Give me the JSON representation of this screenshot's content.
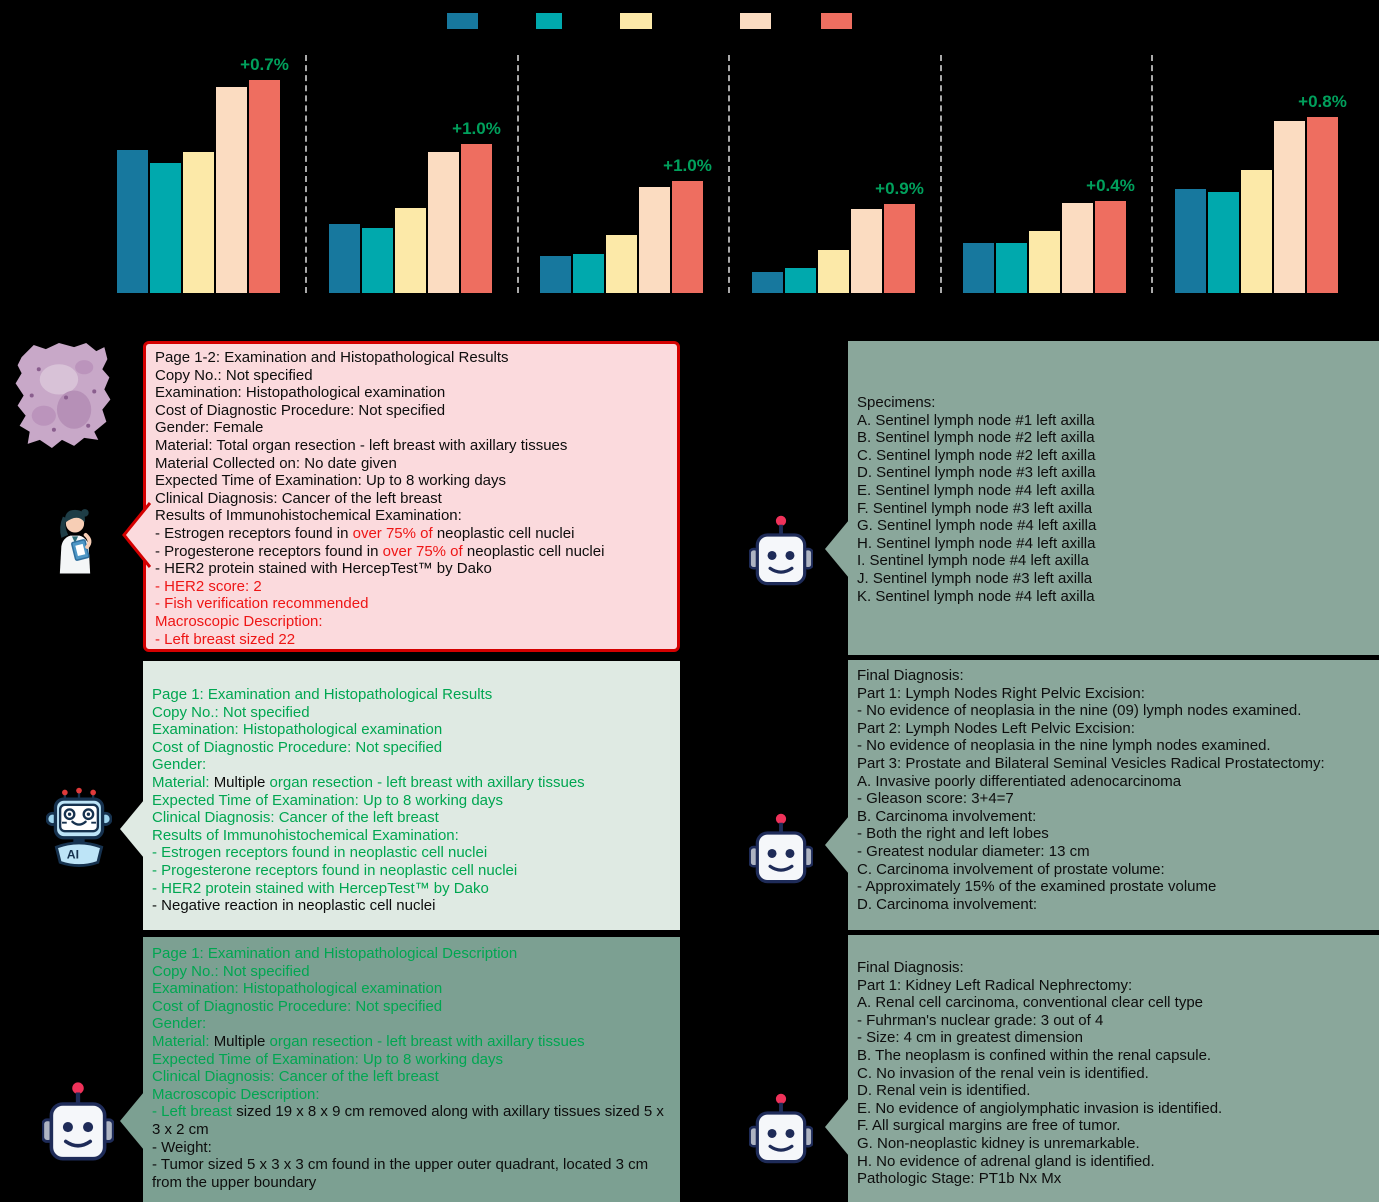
{
  "chart_data": {
    "type": "bar",
    "title": "",
    "xlabel": "",
    "ylabel": "",
    "value_units": "relative bar height in px (y-axis tick labels not visible in image)",
    "legend": {
      "labels": [
        "",
        "",
        "",
        "",
        ""
      ],
      "colors": [
        "#17789E",
        "#00A9AD",
        "#FCE9A8",
        "#FBDCC1",
        "#EE6E60"
      ]
    },
    "bar_colors": [
      "#17789E",
      "#00A9AD",
      "#FCE9A8",
      "#FBDCC1",
      "#EE6E60"
    ],
    "annotation_color": "#00A05C",
    "groups": [
      {
        "annotation": "+0.7%",
        "values": [
          143,
          130,
          141,
          206,
          213
        ]
      },
      {
        "annotation": "+1.0%",
        "values": [
          69,
          65,
          85,
          141,
          149
        ]
      },
      {
        "annotation": "+1.0%",
        "values": [
          37,
          39,
          58,
          106,
          112
        ]
      },
      {
        "annotation": "+0.9%",
        "values": [
          21,
          25,
          43,
          84,
          89
        ]
      },
      {
        "annotation": "+0.4%",
        "values": [
          50,
          50,
          62,
          90,
          92
        ]
      },
      {
        "annotation": "+0.8%",
        "values": [
          104,
          101,
          123,
          172,
          176
        ]
      }
    ],
    "grid": false,
    "legend_position": "top"
  },
  "colors": {
    "background": "#000000",
    "pink_panel_bg": "#FBDADD",
    "pink_panel_border": "#D40000",
    "mint_panel_bg": "#DFEAE3",
    "sage_panel_bg_right": "#8AA79B",
    "sage_panel_bg_left": "#7CA092",
    "text_black": "#0D0D0D",
    "text_red": "#EE1515",
    "text_green": "#00A651"
  },
  "icons": {
    "left_column": [
      "histology-slide-image",
      "doctor-icon",
      "ai-robot-icon",
      "robot-icon"
    ],
    "right_column": [
      "robot-icon",
      "robot-icon",
      "robot-icon"
    ]
  },
  "panels": {
    "left": [
      {
        "lines": [
          [
            {
              "t": "Page 1-2: Examination and Histopathological Results",
              "c": "k"
            }
          ],
          [
            {
              "t": "Copy No.: Not specified",
              "c": "k"
            }
          ],
          [
            {
              "t": "Examination: Histopathological examination",
              "c": "k"
            }
          ],
          [
            {
              "t": "Cost of Diagnostic Procedure: Not specified",
              "c": "k"
            }
          ],
          [
            {
              "t": "Gender: Female",
              "c": "k"
            }
          ],
          [
            {
              "t": "Material: Total organ resection - left breast with axillary tissues",
              "c": "k"
            }
          ],
          [
            {
              "t": "Material Collected on: No date given",
              "c": "k"
            }
          ],
          [
            {
              "t": "Expected Time of Examination: Up to 8 working days",
              "c": "k"
            }
          ],
          [
            {
              "t": "Clinical Diagnosis: Cancer of the left breast",
              "c": "k"
            }
          ],
          [
            {
              "t": "Results of Immunohistochemical Examination:",
              "c": "k"
            }
          ],
          [
            {
              "t": "- Estrogen receptors found in ",
              "c": "k"
            },
            {
              "t": "over 75% of",
              "c": "r"
            },
            {
              "t": " neoplastic cell nuclei",
              "c": "k"
            }
          ],
          [
            {
              "t": "- Progesterone receptors found in ",
              "c": "k"
            },
            {
              "t": "over 75% of",
              "c": "r"
            },
            {
              "t": " neoplastic cell nuclei",
              "c": "k"
            }
          ],
          [
            {
              "t": "- HER2 protein stained with HercepTest™ by Dako",
              "c": "k"
            }
          ],
          [
            {
              "t": "- HER2 score: 2",
              "c": "r"
            }
          ],
          [
            {
              "t": "- Fish verification recommended",
              "c": "r"
            }
          ],
          [
            {
              "t": "Macroscopic Description:",
              "c": "r"
            }
          ],
          [
            {
              "t": "- Left breast sized 22",
              "c": "r"
            }
          ]
        ]
      },
      {
        "lines": [
          [
            {
              "t": "Page 1: Examination and Histopathological Results",
              "c": "g"
            }
          ],
          [
            {
              "t": "Copy No.: Not specified",
              "c": "g"
            }
          ],
          [
            {
              "t": "Examination: Histopathological examination",
              "c": "g"
            }
          ],
          [
            {
              "t": "Cost of Diagnostic Procedure: Not specified",
              "c": "g"
            }
          ],
          [
            {
              "t": "Gender:",
              "c": "g"
            }
          ],
          [
            {
              "t": "Material: ",
              "c": "g"
            },
            {
              "t": "Multiple",
              "c": "k"
            },
            {
              "t": " organ resection - left breast with axillary tissues",
              "c": "g"
            }
          ],
          [
            {
              "t": "Expected Time of Examination: Up to 8 working days",
              "c": "g"
            }
          ],
          [
            {
              "t": "Clinical Diagnosis: Cancer of the left breast",
              "c": "g"
            }
          ],
          [
            {
              "t": "Results of Immunohistochemical Examination:",
              "c": "g"
            }
          ],
          [
            {
              "t": "- Estrogen receptors found in neoplastic cell nuclei",
              "c": "g"
            }
          ],
          [
            {
              "t": "- Progesterone receptors found in neoplastic cell nuclei",
              "c": "g"
            }
          ],
          [
            {
              "t": "- HER2 protein stained with HercepTest™ by Dako",
              "c": "g"
            }
          ],
          [
            {
              "t": "- Negative reaction in neoplastic cell nuclei",
              "c": "k"
            }
          ]
        ]
      },
      {
        "lines": [
          [
            {
              "t": "Page 1: Examination and Histopathological Description",
              "c": "g"
            }
          ],
          [
            {
              "t": "Copy No.: Not specified",
              "c": "g"
            }
          ],
          [
            {
              "t": "Examination: Histopathological examination",
              "c": "g"
            }
          ],
          [
            {
              "t": "Cost of Diagnostic Procedure: Not specified",
              "c": "g"
            }
          ],
          [
            {
              "t": "Gender:",
              "c": "g"
            }
          ],
          [
            {
              "t": "Material: ",
              "c": "g"
            },
            {
              "t": "Multiple",
              "c": "k"
            },
            {
              "t": " organ resection - left breast with axillary tissues",
              "c": "g"
            }
          ],
          [
            {
              "t": "Expected Time of Examination: Up to 8 working days",
              "c": "g"
            }
          ],
          [
            {
              "t": "Clinical Diagnosis: Cancer of the left breast",
              "c": "g"
            }
          ],
          [
            {
              "t": "Macroscopic Description:",
              "c": "g"
            }
          ],
          [
            {
              "t": "- Left breast ",
              "c": "g"
            },
            {
              "t": "sized 19 x 8 x 9 cm removed along with axillary tissues sized 5 x 3 x 2 cm",
              "c": "k"
            }
          ],
          [
            {
              "t": "- Weight:",
              "c": "k"
            }
          ],
          [
            {
              "t": "- Tumor sized 5 x 3 x 3 cm found in the upper outer quadrant, located 3 cm from the upper boundary",
              "c": "k"
            }
          ]
        ]
      }
    ],
    "right": [
      {
        "lines": [
          [
            {
              "t": "Specimens:",
              "c": "k"
            }
          ],
          [
            {
              "t": "A. Sentinel lymph node #1 left axilla",
              "c": "k"
            }
          ],
          [
            {
              "t": "B. Sentinel lymph node #2 left axilla",
              "c": "k"
            }
          ],
          [
            {
              "t": "C. Sentinel lymph node #2 left axilla",
              "c": "k"
            }
          ],
          [
            {
              "t": "D. Sentinel lymph node #3 left axilla",
              "c": "k"
            }
          ],
          [
            {
              "t": "E. Sentinel lymph node #4 left axilla",
              "c": "k"
            }
          ],
          [
            {
              "t": "F. Sentinel lymph node #3 left axilla",
              "c": "k"
            }
          ],
          [
            {
              "t": "G. Sentinel lymph node #4 left axilla",
              "c": "k"
            }
          ],
          [
            {
              "t": "H. Sentinel lymph node #4 left axilla",
              "c": "k"
            }
          ],
          [
            {
              "t": "I. Sentinel lymph node #4 left axilla",
              "c": "k"
            }
          ],
          [
            {
              "t": "J. Sentinel lymph node #3 left axilla",
              "c": "k"
            }
          ],
          [
            {
              "t": "K. Sentinel lymph node #4 left axilla",
              "c": "k"
            }
          ]
        ]
      },
      {
        "lines": [
          [
            {
              "t": "Final Diagnosis:",
              "c": "k"
            }
          ],
          [
            {
              "t": "Part 1: Lymph Nodes Right Pelvic Excision:",
              "c": "k"
            }
          ],
          [
            {
              "t": "- No evidence of neoplasia in the nine (09) lymph nodes examined.",
              "c": "k"
            }
          ],
          [
            {
              "t": "Part 2: Lymph Nodes Left Pelvic Excision:",
              "c": "k"
            }
          ],
          [
            {
              "t": "- No evidence of neoplasia in the nine lymph nodes examined.",
              "c": "k"
            }
          ],
          [
            {
              "t": "Part 3: Prostate and Bilateral Seminal Vesicles Radical Prostatectomy:",
              "c": "k"
            }
          ],
          [
            {
              "t": "A. Invasive poorly differentiated adenocarcinoma",
              "c": "k"
            }
          ],
          [
            {
              "t": "- Gleason score: 3+4=7",
              "c": "k"
            }
          ],
          [
            {
              "t": "B. Carcinoma involvement:",
              "c": "k"
            }
          ],
          [
            {
              "t": "- Both the right and left lobes",
              "c": "k"
            }
          ],
          [
            {
              "t": "- Greatest nodular diameter: 13 cm",
              "c": "k"
            }
          ],
          [
            {
              "t": "C. Carcinoma involvement of prostate volume:",
              "c": "k"
            }
          ],
          [
            {
              "t": "- Approximately 15% of the examined prostate volume",
              "c": "k"
            }
          ],
          [
            {
              "t": "D. Carcinoma involvement:",
              "c": "k"
            }
          ]
        ]
      },
      {
        "lines": [
          [
            {
              "t": "Final Diagnosis:",
              "c": "k"
            }
          ],
          [
            {
              "t": "Part 1: Kidney Left Radical Nephrectomy:",
              "c": "k"
            }
          ],
          [
            {
              "t": "A. Renal cell carcinoma, conventional clear cell type",
              "c": "k"
            }
          ],
          [
            {
              "t": "- Fuhrman's nuclear grade: 3 out of 4",
              "c": "k"
            }
          ],
          [
            {
              "t": "- Size: 4 cm in greatest dimension",
              "c": "k"
            }
          ],
          [
            {
              "t": "B. The neoplasm is confined within the renal capsule.",
              "c": "k"
            }
          ],
          [
            {
              "t": "C. No invasion of the renal vein is identified.",
              "c": "k"
            }
          ],
          [
            {
              "t": "D. Renal vein is identified.",
              "c": "k"
            }
          ],
          [
            {
              "t": "E. No evidence of angiolymphatic invasion is identified.",
              "c": "k"
            }
          ],
          [
            {
              "t": "F. All surgical margins are free of tumor.",
              "c": "k"
            }
          ],
          [
            {
              "t": "G. Non-neoplastic kidney is unremarkable.",
              "c": "k"
            }
          ],
          [
            {
              "t": "H. No evidence of adrenal gland is identified.",
              "c": "k"
            }
          ],
          [
            {
              "t": "Pathologic Stage: PT1b Nx Mx",
              "c": "k"
            }
          ]
        ]
      }
    ]
  }
}
